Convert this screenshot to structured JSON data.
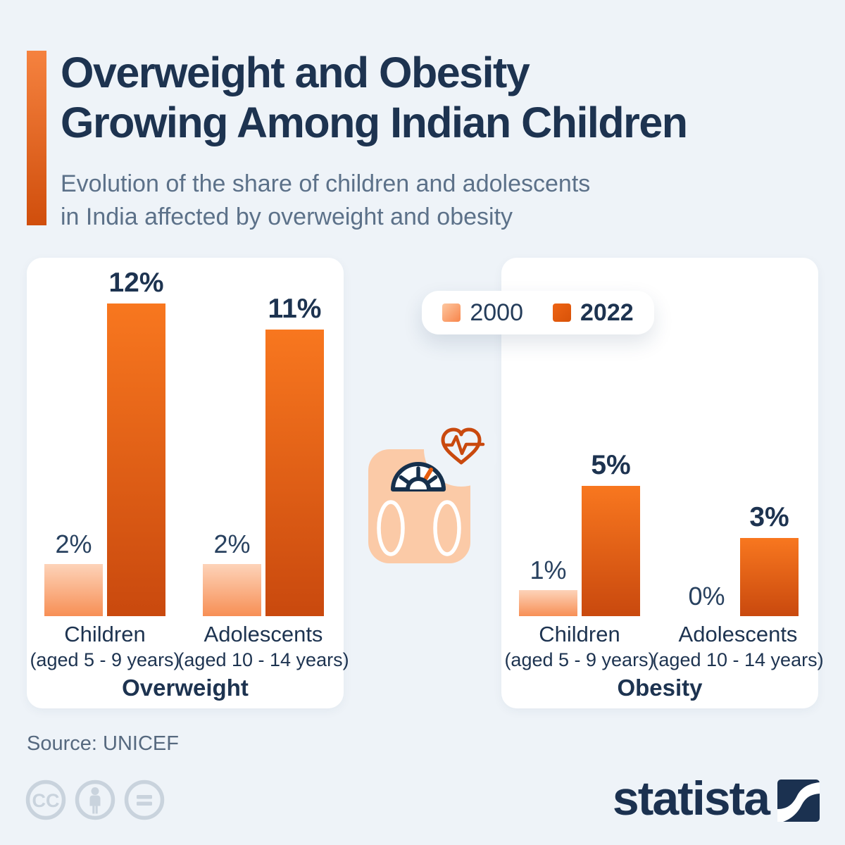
{
  "header": {
    "title_line1": "Overweight and Obesity",
    "title_line2": "Growing Among Indian Children",
    "subtitle_line1": "Evolution of the share of children and adolescents",
    "subtitle_line2": "in India affected by overweight and obesity"
  },
  "legend": {
    "items": [
      {
        "label": "2000",
        "bold": false
      },
      {
        "label": "2022",
        "bold": true
      }
    ]
  },
  "chart_data": [
    {
      "type": "bar",
      "title": "Overweight",
      "categories": [
        {
          "label": "Children",
          "sub": "(aged 5 - 9 years)"
        },
        {
          "label": "Adolescents",
          "sub": "(aged 10 - 14 years)"
        }
      ],
      "series": [
        {
          "name": "2000",
          "values": [
            2,
            2
          ]
        },
        {
          "name": "2022",
          "values": [
            12,
            11
          ]
        }
      ],
      "unit": "%",
      "ylim": [
        0,
        13
      ],
      "value_labels": [
        "2%",
        "12%",
        "2%",
        "11%"
      ],
      "grid": false,
      "legend_position": "top-right"
    },
    {
      "type": "bar",
      "title": "Obesity",
      "categories": [
        {
          "label": "Children",
          "sub": "(aged 5 - 9 years)"
        },
        {
          "label": "Adolescents",
          "sub": "(aged 10 - 14 years)"
        }
      ],
      "series": [
        {
          "name": "2000",
          "values": [
            1,
            0
          ]
        },
        {
          "name": "2022",
          "values": [
            5,
            3
          ]
        }
      ],
      "unit": "%",
      "ylim": [
        0,
        13
      ],
      "value_labels": [
        "1%",
        "5%",
        "0%",
        "3%"
      ],
      "grid": false,
      "legend_position": "top-right"
    }
  ],
  "colors": {
    "background": "#eef3f8",
    "card": "#ffffff",
    "navy_text": "#1d3350",
    "subtitle_gray": "#5c7189",
    "series_2000_light_orange": "#f78f55",
    "series_2022_dark_orange": "#e4570e",
    "accent_bar_orange": "#e05a12",
    "pictogram_peach": "#fbcaa7",
    "heart_orange": "#c9490e"
  },
  "icons": {
    "pictogram": "weight-scale-with-heart-pulse-icon",
    "license": [
      "cc-icon",
      "cc-by-person-icon",
      "cc-nd-equals-icon"
    ],
    "brand_mark": "statista-swoosh-icon"
  },
  "footer": {
    "source": "Source: UNICEF",
    "brand": "statista"
  }
}
